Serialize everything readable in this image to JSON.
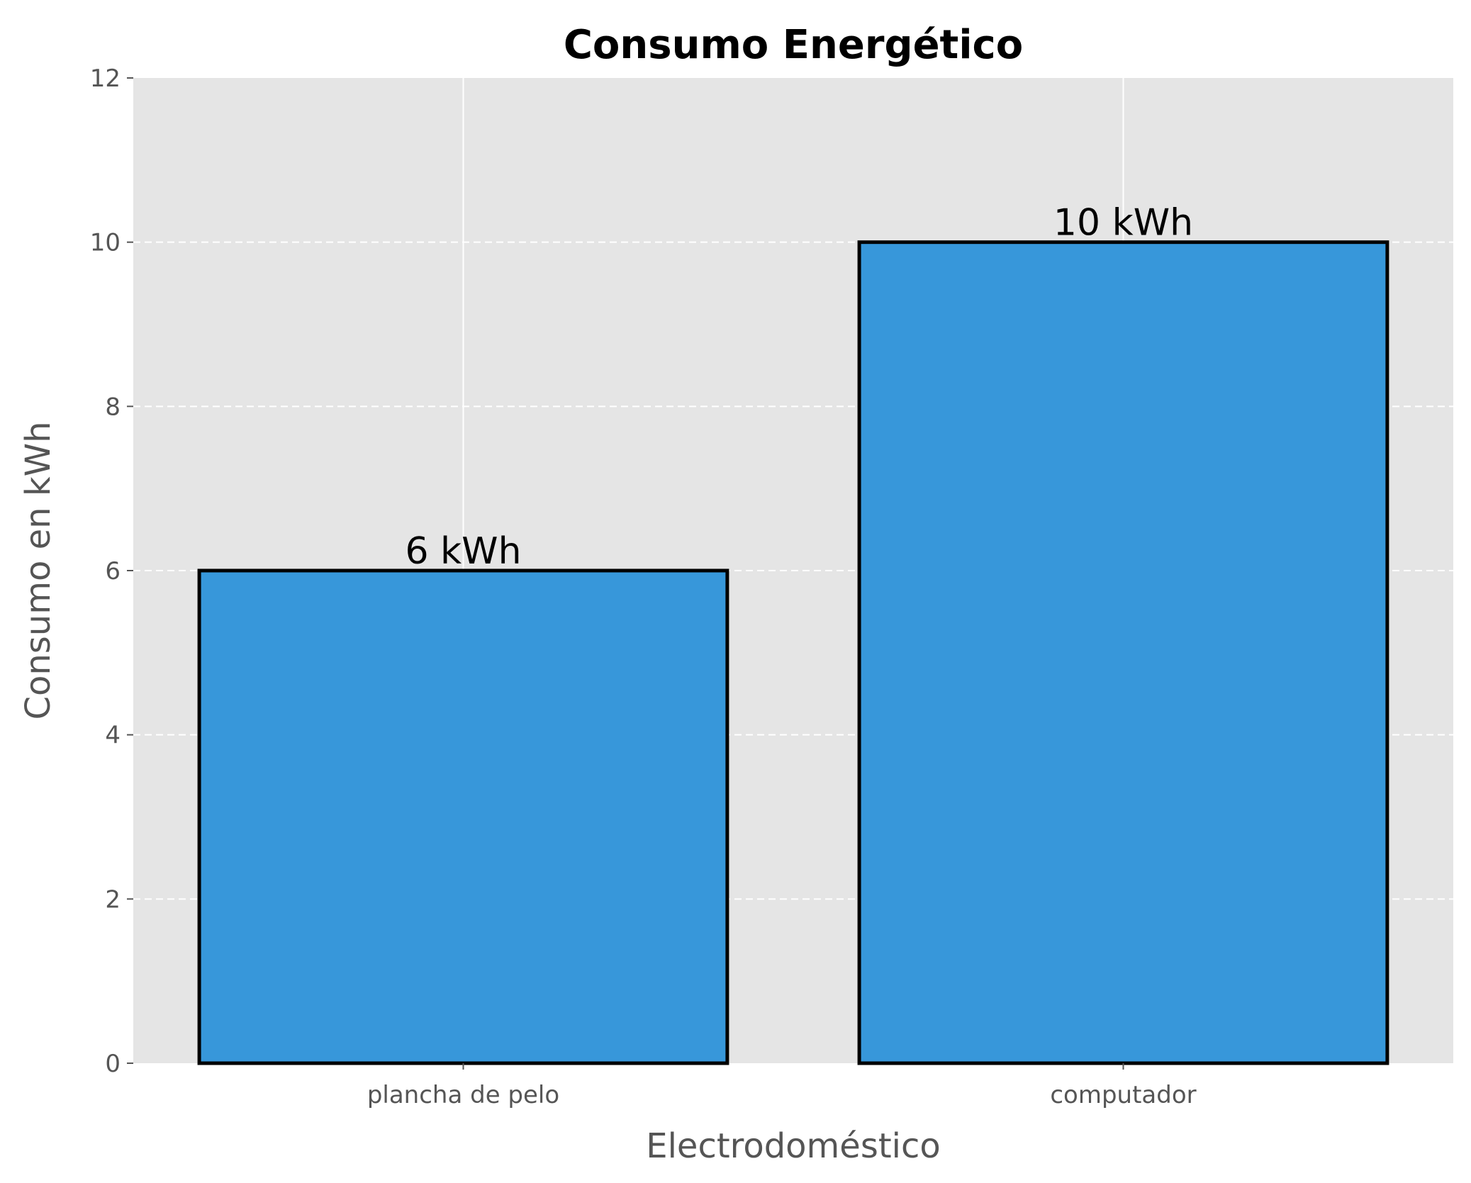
{
  "chart_data": {
    "type": "bar",
    "title": "Consumo Energético",
    "xlabel": "Electrodoméstico",
    "ylabel": "Consumo en kWh",
    "categories": [
      "plancha de pelo",
      "computador"
    ],
    "values": [
      6,
      10
    ],
    "value_labels": [
      "6 kWh",
      "10 kWh"
    ],
    "ylim": [
      0,
      12
    ],
    "yticks": [
      "0",
      "2",
      "4",
      "6",
      "8",
      "10",
      "12"
    ],
    "grid": true,
    "legend": "none",
    "colors": {
      "bar_fill": "#3797da",
      "bar_edge": "#000000",
      "plot_background": "#e5e5e5",
      "grid": "#ffffff",
      "tick_text": "#555555"
    }
  }
}
